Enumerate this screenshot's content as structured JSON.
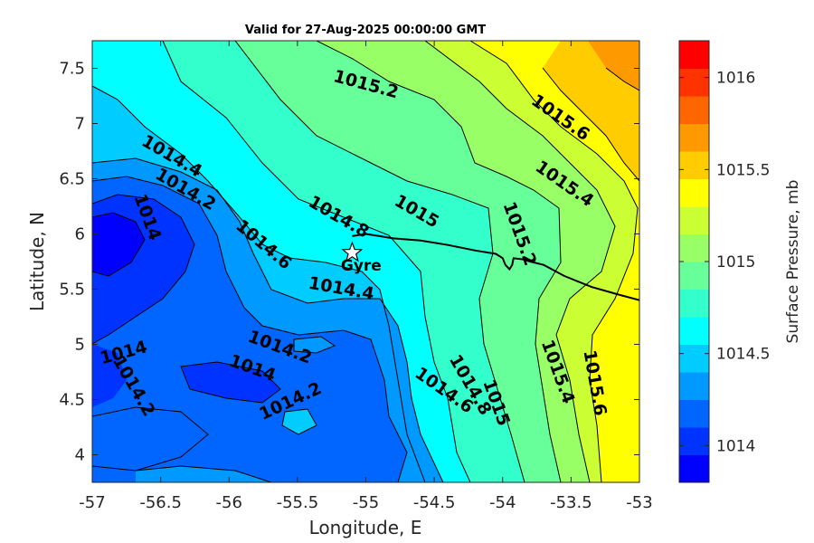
{
  "chart_data": {
    "type": "contour",
    "title": "Valid for 27-Aug-2025 00:00:00 GMT",
    "xlabel": "Longitude, E",
    "ylabel": "Latitude, N",
    "colorbar_label": "Surface Pressure, mb",
    "xlim": [
      -57,
      -53
    ],
    "ylim": [
      3.75,
      7.75
    ],
    "x_ticks": [
      -57,
      -56.5,
      -56,
      -55.5,
      -55,
      -54.5,
      -54,
      -53.5,
      -53
    ],
    "x_tick_labels": [
      "-57",
      "-56.5",
      "-56",
      "-55.5",
      "-55",
      "-54.5",
      "-54",
      "-53.5",
      "-53"
    ],
    "y_ticks": [
      4,
      4.5,
      5,
      5.5,
      6,
      6.5,
      7,
      7.5
    ],
    "y_tick_labels": [
      "4",
      "4.5",
      "5",
      "5.5",
      "6",
      "6.5",
      "7",
      "7.5"
    ],
    "colorbar_range": [
      1013.8,
      1016.2
    ],
    "colorbar_levels": [
      1013.8,
      1013.9,
      1014.0,
      1014.1,
      1014.2,
      1014.3,
      1014.4,
      1014.5,
      1014.6,
      1014.7,
      1014.8,
      1014.9,
      1015.0,
      1015.1,
      1015.2,
      1015.3,
      1015.4,
      1015.5,
      1015.6,
      1015.7,
      1015.8,
      1015.9,
      1016.0,
      1016.1,
      1016.2
    ],
    "colorbar_ticks": [
      1014,
      1014.5,
      1015,
      1015.5,
      1016
    ],
    "colorbar_tick_labels": [
      "1014",
      "1014.5",
      "1015",
      "1015.5",
      "1016"
    ],
    "colormap": [
      "#0000ff",
      "#0033ff",
      "#0066ff",
      "#0099ff",
      "#00ccff",
      "#00ffff",
      "#33ffcc",
      "#66ff99",
      "#99ff66",
      "#ccff33",
      "#ffff00",
      "#ffcc00",
      "#ff9900",
      "#ff6600",
      "#ff3300",
      "#ff0000"
    ],
    "contour_labels": [
      {
        "text": "1015.2",
        "x": -55.0,
        "y": 7.35
      },
      {
        "text": "1015.6",
        "x": -53.58,
        "y": 7.05
      },
      {
        "text": "1014.4",
        "x": -56.42,
        "y": 6.7
      },
      {
        "text": "1015.4",
        "x": -53.55,
        "y": 6.45
      },
      {
        "text": "1014.2",
        "x": -56.32,
        "y": 6.4
      },
      {
        "text": "1014",
        "x": -56.6,
        "y": 6.15
      },
      {
        "text": "1014.8",
        "x": -55.2,
        "y": 6.15
      },
      {
        "text": "1015",
        "x": -54.63,
        "y": 6.2
      },
      {
        "text": "1015.2",
        "x": -53.88,
        "y": 6.0
      },
      {
        "text": "1014.6",
        "x": -55.75,
        "y": 5.9
      },
      {
        "text": "1014.4",
        "x": -55.18,
        "y": 5.5
      },
      {
        "text": "1014.2",
        "x": -55.63,
        "y": 4.97
      },
      {
        "text": "1014",
        "x": -56.77,
        "y": 4.92
      },
      {
        "text": "1014",
        "x": -55.83,
        "y": 4.78
      },
      {
        "text": "1014.2",
        "x": -56.7,
        "y": 4.62
      },
      {
        "text": "1014.2",
        "x": -55.55,
        "y": 4.48
      },
      {
        "text": "1014.6",
        "x": -54.43,
        "y": 4.58
      },
      {
        "text": "1014.8",
        "x": -54.24,
        "y": 4.63
      },
      {
        "text": "1015",
        "x": -54.05,
        "y": 4.47
      },
      {
        "text": "1015.4",
        "x": -53.6,
        "y": 4.75
      },
      {
        "text": "1015.6",
        "x": -53.33,
        "y": 4.65
      }
    ],
    "stations": [
      {
        "name": "Gyre",
        "x": -55.1,
        "y": 5.83,
        "marker": "star"
      }
    ],
    "coastline": [
      [
        -55.1,
        5.98
      ],
      [
        -55.0,
        6.0
      ],
      [
        -54.9,
        5.98
      ],
      [
        -54.8,
        5.96
      ],
      [
        -54.6,
        5.94
      ],
      [
        -54.4,
        5.9
      ],
      [
        -54.2,
        5.85
      ],
      [
        -54.05,
        5.82
      ],
      [
        -54.0,
        5.78
      ],
      [
        -53.98,
        5.72
      ],
      [
        -53.95,
        5.68
      ],
      [
        -53.93,
        5.72
      ],
      [
        -53.92,
        5.78
      ],
      [
        -53.85,
        5.77
      ],
      [
        -53.8,
        5.75
      ],
      [
        -53.7,
        5.72
      ],
      [
        -53.55,
        5.62
      ],
      [
        -53.35,
        5.52
      ],
      [
        -53.15,
        5.45
      ],
      [
        -53.0,
        5.4
      ]
    ]
  }
}
